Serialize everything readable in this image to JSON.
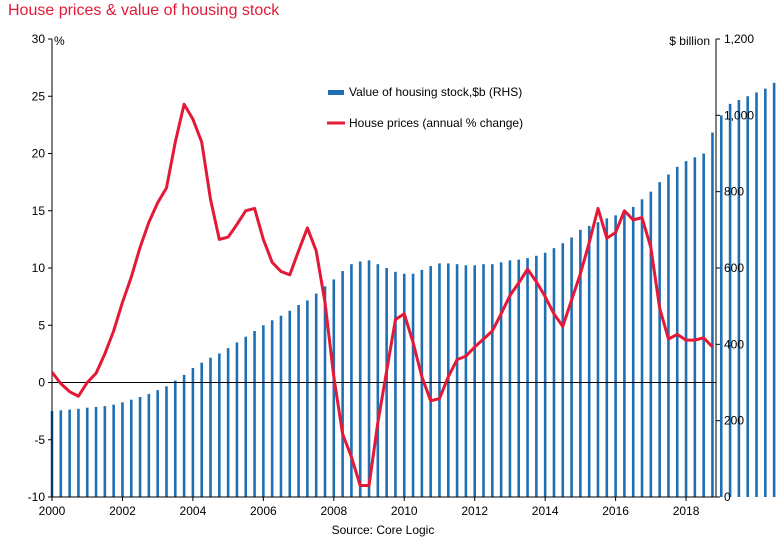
{
  "chart_data": {
    "type": "bar+line",
    "title": "House prices & value of housing stock",
    "source": "Source: Core Logic",
    "left_axis": {
      "unit": "%",
      "ylim": [
        -10,
        30
      ],
      "ticks": [
        -10,
        -5,
        0,
        5,
        10,
        15,
        20,
        25,
        30
      ],
      "tick_labels": [
        "-10",
        "-5",
        "0",
        "5",
        "10",
        "15",
        "20",
        "25",
        "30"
      ]
    },
    "right_axis": {
      "unit": "$ billion",
      "ylim": [
        0,
        1200
      ],
      "ticks": [
        0,
        200,
        400,
        600,
        800,
        1000,
        1200
      ],
      "tick_labels": [
        "0",
        "200",
        "400",
        "600",
        "800",
        "1,000",
        "1,200"
      ]
    },
    "x_axis": {
      "xlim": [
        2000,
        2018.85
      ],
      "ticks": [
        2000,
        2002,
        2004,
        2006,
        2008,
        2010,
        2012,
        2014,
        2016,
        2018
      ],
      "tick_labels": [
        "2000",
        "2002",
        "2004",
        "2006",
        "2008",
        "2010",
        "2012",
        "2014",
        "2016",
        "2018"
      ]
    },
    "legend": {
      "position": "top-center",
      "bar_label": "Value of housing stock,$b (RHS)",
      "line_label": "House prices (annual % change)"
    },
    "colors": {
      "bars": "#1f6fb5",
      "line": "#e31937",
      "title": "#e31937"
    },
    "series": [
      {
        "name": "Value of housing stock,$b (RHS)",
        "kind": "bar",
        "axis": "right",
        "start": 2000.0,
        "step": 0.25,
        "values": [
          225,
          227,
          229,
          231,
          234,
          236,
          238,
          242,
          248,
          255,
          262,
          270,
          280,
          290,
          305,
          320,
          338,
          352,
          365,
          376,
          390,
          405,
          420,
          435,
          450,
          463,
          475,
          488,
          503,
          515,
          533,
          552,
          570,
          592,
          610,
          617,
          620,
          610,
          600,
          590,
          585,
          585,
          595,
          605,
          612,
          612,
          610,
          607,
          607,
          610,
          610,
          615,
          620,
          622,
          626,
          632,
          640,
          652,
          665,
          680,
          700,
          710,
          720,
          730,
          738,
          745,
          760,
          780,
          800,
          825,
          845,
          865,
          880,
          890,
          900,
          955,
          1000,
          1030,
          1040,
          1050,
          1060,
          1070,
          1085,
          1095,
          1105,
          1115,
          1125
        ]
      },
      {
        "name": "House prices (annual % change)",
        "kind": "line",
        "axis": "left",
        "x": [
          2000.0,
          2000.25,
          2000.5,
          2000.75,
          2001.0,
          2001.25,
          2001.5,
          2001.75,
          2002.0,
          2002.25,
          2002.5,
          2002.75,
          2003.0,
          2003.25,
          2003.5,
          2003.75,
          2004.0,
          2004.25,
          2004.5,
          2004.75,
          2005.0,
          2005.25,
          2005.5,
          2005.75,
          2006.0,
          2006.25,
          2006.5,
          2006.75,
          2007.0,
          2007.25,
          2007.5,
          2007.75,
          2008.0,
          2008.25,
          2008.5,
          2008.75,
          2009.0,
          2009.25,
          2009.5,
          2009.75,
          2010.0,
          2010.25,
          2010.5,
          2010.75,
          2011.0,
          2011.25,
          2011.5,
          2011.75,
          2012.0,
          2012.25,
          2012.5,
          2012.75,
          2013.0,
          2013.25,
          2013.5,
          2013.75,
          2014.0,
          2014.25,
          2014.5,
          2014.75,
          2015.0,
          2015.25,
          2015.5,
          2015.75,
          2016.0,
          2016.25,
          2016.5,
          2016.75,
          2017.0,
          2017.25,
          2017.5,
          2017.75,
          2018.0,
          2018.25,
          2018.5,
          2018.75
        ],
        "values": [
          0.9,
          -0.1,
          -0.8,
          -1.2,
          0.0,
          0.8,
          2.5,
          4.5,
          7.0,
          9.2,
          11.8,
          14.0,
          15.7,
          17.0,
          21.0,
          24.3,
          23.0,
          21.0,
          16.0,
          12.5,
          12.7,
          13.8,
          15.0,
          15.2,
          12.5,
          10.5,
          9.7,
          9.4,
          11.5,
          13.5,
          11.5,
          7.0,
          0.5,
          -4.5,
          -6.5,
          -9.0,
          -9.0,
          -3.5,
          1.0,
          5.5,
          6.0,
          3.5,
          0.5,
          -1.6,
          -1.4,
          0.5,
          2.0,
          2.3,
          3.1,
          3.8,
          4.5,
          6.0,
          7.6,
          8.7,
          9.9,
          8.8,
          7.5,
          6.0,
          4.9,
          7.2,
          9.5,
          12.2,
          15.2,
          12.6,
          13.1,
          15.0,
          14.2,
          14.4,
          11.8,
          6.5,
          3.8,
          4.2,
          3.7,
          3.7,
          3.9,
          3.1
        ]
      }
    ]
  }
}
